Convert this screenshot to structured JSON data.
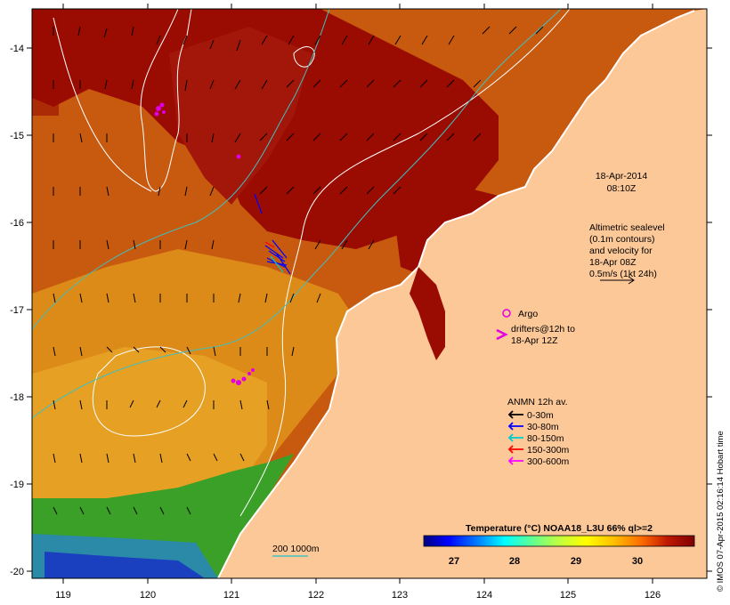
{
  "map": {
    "lon_ticks": [
      "119",
      "120",
      "121",
      "122",
      "123",
      "124",
      "125",
      "126"
    ],
    "lat_ticks": [
      "-14",
      "-15",
      "-16",
      "-17",
      "-18",
      "-19",
      "-20"
    ]
  },
  "timestamp": {
    "line1": "18-Apr-2014",
    "line2": "08:10Z"
  },
  "altimetry": {
    "lines": [
      "Altimetric sealevel",
      "(0.1m contours)",
      "and velocity for",
      "18-Apr 08Z",
      "0.5m/s (1kt 24h)"
    ]
  },
  "argo": {
    "label": "Argo",
    "color": "#e000e0"
  },
  "drifters": {
    "lines": [
      "drifters@12h to",
      "18-Apr 12Z"
    ],
    "color": "#e000e0"
  },
  "anmn": {
    "title": "ANMN 12h av.",
    "entries": [
      {
        "label": "0-30m",
        "color": "#000000"
      },
      {
        "label": "30-80m",
        "color": "#0000ff"
      },
      {
        "label": "80-150m",
        "color": "#00cccc"
      },
      {
        "label": "150-300m",
        "color": "#ff0000"
      },
      {
        "label": "300-600m",
        "color": "#ff00ff"
      }
    ]
  },
  "colorbar": {
    "title": "Temperature (°C) NOAA18_L3U 66% ql>=2",
    "labels": [
      "27",
      "28",
      "29",
      "30"
    ],
    "colors": [
      "#00007f",
      "#0000ff",
      "#0080ff",
      "#00ffff",
      "#40ff80",
      "#a0ff40",
      "#ffff00",
      "#ffc000",
      "#ff8000",
      "#e04000",
      "#a00000",
      "#7f0000"
    ]
  },
  "isobath": {
    "label": "200  1000m",
    "color": "#40c0c0"
  },
  "credit": "© IMOS 07-Apr-2015 02:16:14 Hobart time",
  "colors": {
    "land": "#fdc898",
    "sea_warm": "#9a0c02",
    "sea_mid": "#d06010",
    "sea_cool": "#e9a020",
    "sea_coast": "#2a9a20"
  }
}
